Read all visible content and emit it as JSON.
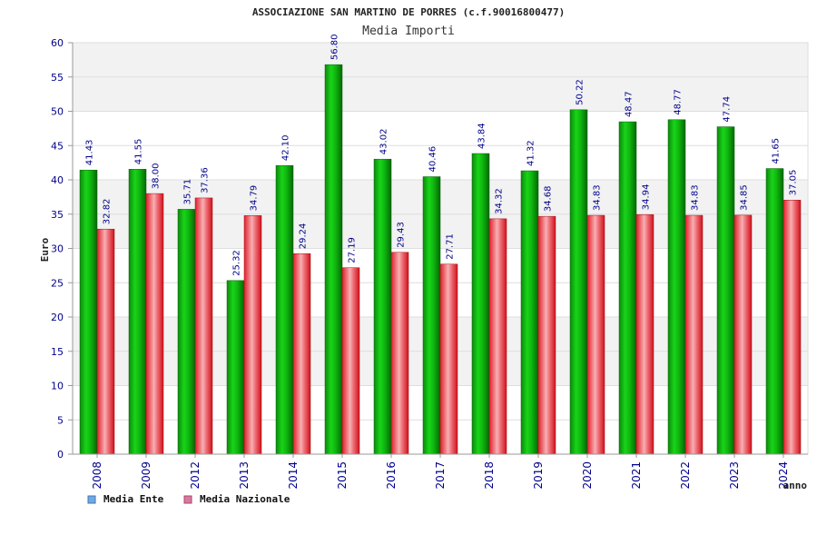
{
  "chart_data": {
    "type": "bar",
    "title": "ASSOCIAZIONE SAN MARTINO DE PORRES (c.f.90016800477)",
    "subtitle": "Media Importi",
    "xlabel": "anno",
    "ylabel": "Euro",
    "ylim": [
      0,
      60
    ],
    "ytick_step": 5,
    "grid": true,
    "legend_position": "bottom-left",
    "categories": [
      "2008",
      "2009",
      "2012",
      "2013",
      "2014",
      "2015",
      "2016",
      "2017",
      "2018",
      "2019",
      "2020",
      "2021",
      "2022",
      "2023",
      "2024"
    ],
    "series": [
      {
        "name": "Media Ente",
        "color": "#00b000",
        "legend_color": "#6ea8e8",
        "values": [
          41.43,
          41.55,
          35.71,
          25.32,
          42.1,
          56.8,
          43.02,
          40.46,
          43.84,
          41.32,
          50.22,
          48.47,
          48.77,
          47.74,
          41.65
        ],
        "labels": [
          "41.43",
          "41.55",
          "35.71",
          "25.32",
          "42.10",
          "56.80",
          "43.02",
          "40.46",
          "43.84",
          "41.32",
          "50.22",
          "48.47",
          "48.77",
          "47.74",
          "41.65"
        ]
      },
      {
        "name": "Media Nazionale",
        "color": "#e8202c",
        "legend_color": "#d87aa0",
        "values": [
          32.82,
          38.0,
          37.36,
          34.79,
          29.24,
          27.19,
          29.43,
          27.71,
          34.32,
          34.68,
          34.83,
          34.94,
          34.83,
          34.85,
          37.05
        ],
        "labels": [
          "32.82",
          "38.00",
          "37.36",
          "34.79",
          "29.24",
          "27.19",
          "29.43",
          "27.71",
          "34.32",
          "34.68",
          "34.83",
          "34.94",
          "34.83",
          "34.85",
          "37.05"
        ]
      }
    ]
  }
}
